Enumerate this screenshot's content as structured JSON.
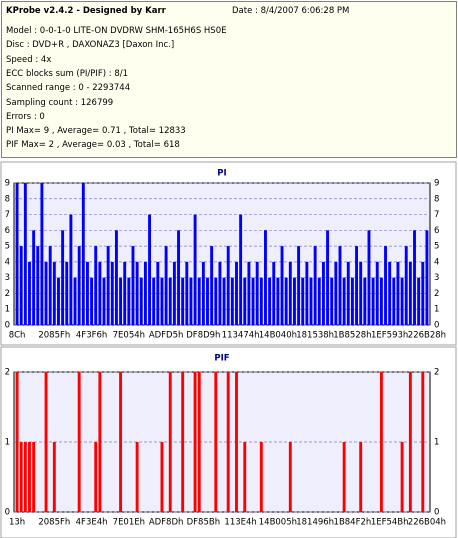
{
  "header": {
    "title": "KProbe v2.4.2 - Designed by Karr",
    "date": "Date : 8/4/2007 6:06:28 PM",
    "lines": [
      "Model : 0-0-1-0 LITE-ON DVDRW SHM-165H6S HS0E",
      "Disc : DVD+R , DAXONAZ3 [Daxon Inc.]",
      "Speed : 4x",
      "ECC blocks sum (PI/PIF) : 8/1",
      "Scanned range : 0 - 2293744",
      "Sampling count : 126799",
      "Errors : 0",
      "PI Max= 9 , Average= 0.71 , Total= 12833",
      "PIF Max= 2 , Average= 0.03 , Total= 618"
    ]
  },
  "chart_data": [
    {
      "type": "bar",
      "title": "PI",
      "color": "#0000ff",
      "grid": true,
      "ylim": [
        0,
        9
      ],
      "yticks": [
        0,
        1,
        2,
        3,
        4,
        5,
        6,
        7,
        8,
        9
      ],
      "categories": [
        "8Ch",
        null,
        null,
        null,
        null,
        null,
        null,
        null,
        null,
        "2085Fh",
        null,
        null,
        null,
        null,
        null,
        null,
        null,
        null,
        "4F3F6h",
        null,
        null,
        null,
        null,
        null,
        null,
        null,
        null,
        "7E054h",
        null,
        null,
        null,
        null,
        null,
        null,
        null,
        null,
        "ADFD5h",
        null,
        null,
        null,
        null,
        null,
        null,
        null,
        null,
        "DF8D9h",
        null,
        null,
        null,
        null,
        null,
        null,
        null,
        null,
        "113474h",
        null,
        null,
        null,
        null,
        null,
        null,
        null,
        null,
        "14B040h",
        null,
        null,
        null,
        null,
        null,
        null,
        null,
        null,
        "181538h",
        null,
        null,
        null,
        null,
        null,
        null,
        null,
        null,
        "1B8528h",
        null,
        null,
        null,
        null,
        null,
        null,
        null,
        null,
        "1EF593h",
        null,
        null,
        null,
        null,
        null,
        null,
        null,
        null,
        "226B28h"
      ],
      "values": [
        9,
        5,
        9,
        4,
        6,
        5,
        9,
        4,
        5,
        4,
        3,
        6,
        4,
        7,
        3,
        5,
        9,
        4,
        3,
        5,
        4,
        3,
        5,
        4,
        6,
        3,
        4,
        3,
        5,
        4,
        3,
        4,
        7,
        3,
        4,
        3,
        5,
        3,
        4,
        6,
        3,
        4,
        3,
        7,
        3,
        4,
        3,
        5,
        3,
        4,
        3,
        5,
        3,
        4,
        7,
        3,
        4,
        3,
        4,
        3,
        6,
        3,
        4,
        3,
        5,
        3,
        4,
        3,
        5,
        3,
        4,
        3,
        5,
        3,
        4,
        6,
        3,
        4,
        5,
        3,
        4,
        3,
        5,
        4,
        3,
        6,
        3,
        4,
        3,
        5,
        4,
        3,
        4,
        3,
        5,
        4,
        6,
        3,
        4,
        6
      ]
    },
    {
      "type": "bar",
      "title": "PIF",
      "color": "#ff0000",
      "grid": true,
      "ylim": [
        0,
        2
      ],
      "yticks": [
        0,
        1,
        2
      ],
      "categories": [
        "13h",
        null,
        null,
        null,
        null,
        null,
        null,
        null,
        null,
        "2085Fh",
        null,
        null,
        null,
        null,
        null,
        null,
        null,
        null,
        "4F3E4h",
        null,
        null,
        null,
        null,
        null,
        null,
        null,
        null,
        "7E01Eh",
        null,
        null,
        null,
        null,
        null,
        null,
        null,
        null,
        "ADF8Dh",
        null,
        null,
        null,
        null,
        null,
        null,
        null,
        null,
        "DF85Bh",
        null,
        null,
        null,
        null,
        null,
        null,
        null,
        null,
        "113E4h",
        null,
        null,
        null,
        null,
        null,
        null,
        null,
        null,
        "14B005h",
        null,
        null,
        null,
        null,
        null,
        null,
        null,
        null,
        "181496h",
        null,
        null,
        null,
        null,
        null,
        null,
        null,
        null,
        "1B84F2h",
        null,
        null,
        null,
        null,
        null,
        null,
        null,
        null,
        "1EF54Bh",
        null,
        null,
        null,
        null,
        null,
        null,
        null,
        null,
        "226B04h"
      ],
      "values": [
        2,
        1,
        1,
        1,
        1,
        0,
        0,
        2,
        0,
        1,
        0,
        0,
        0,
        0,
        0,
        2,
        0,
        0,
        0,
        1,
        2,
        0,
        0,
        0,
        0,
        2,
        0,
        0,
        0,
        1,
        0,
        0,
        0,
        0,
        0,
        1,
        0,
        2,
        0,
        0,
        2,
        0,
        0,
        2,
        2,
        0,
        0,
        0,
        2,
        0,
        0,
        2,
        0,
        2,
        0,
        1,
        0,
        0,
        0,
        1,
        0,
        0,
        0,
        0,
        0,
        0,
        1,
        0,
        0,
        0,
        0,
        0,
        0,
        0,
        0,
        0,
        0,
        0,
        0,
        1,
        0,
        0,
        0,
        1,
        0,
        0,
        0,
        0,
        2,
        0,
        0,
        0,
        0,
        1,
        0,
        2,
        0,
        0,
        2,
        0
      ]
    }
  ]
}
